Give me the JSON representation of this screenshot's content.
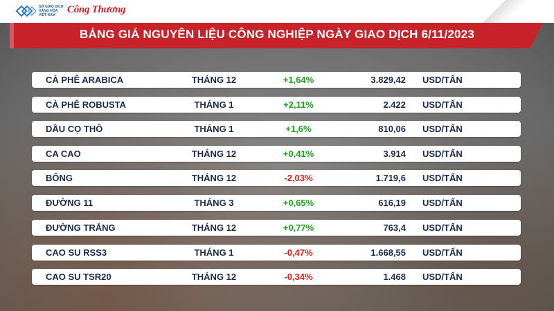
{
  "header": {
    "logo_text": "SỞ GIAO DỊCH HÀNG HÓA VIỆT NAM",
    "brand": "Công Thương",
    "title": "BẢNG GIÁ NGUYÊN LIỆU CÔNG NGHIỆP NGÀY GIAO DỊCH 6/11/2023"
  },
  "rows": [
    {
      "name": "CÀ PHÊ ARABICA",
      "month": "THÁNG 12",
      "change": "+1,64%",
      "direction": "up",
      "price": "3.829,42",
      "unit": "USD/TẤN"
    },
    {
      "name": "CÀ PHÊ ROBUSTA",
      "month": "THÁNG 1",
      "change": "+2,11%",
      "direction": "up",
      "price": "2.422",
      "unit": "USD/TẤN"
    },
    {
      "name": "DẦU CỌ THÔ",
      "month": "THÁNG 1",
      "change": "+1,6%",
      "direction": "up",
      "price": "810,06",
      "unit": "USD/TẤN"
    },
    {
      "name": "CA CAO",
      "month": "THÁNG 12",
      "change": "+0,41%",
      "direction": "up",
      "price": "3.914",
      "unit": "USD/TẤN"
    },
    {
      "name": "BÔNG",
      "month": "THÁNG 12",
      "change": "-2,03%",
      "direction": "down",
      "price": "1.719,6",
      "unit": "USD/TẤN"
    },
    {
      "name": "ĐƯỜNG 11",
      "month": "THÁNG 3",
      "change": "+0,65%",
      "direction": "up",
      "price": "616,19",
      "unit": "USD/TẤN"
    },
    {
      "name": "ĐƯỜNG TRẮNG",
      "month": "THÁNG 12",
      "change": "+0,77%",
      "direction": "up",
      "price": "763,4",
      "unit": "USD/TẤN"
    },
    {
      "name": "CAO SU RSS3",
      "month": "THÁNG 1",
      "change": "-0,47%",
      "direction": "down",
      "price": "1.668,55",
      "unit": "USD/TẤN"
    },
    {
      "name": "CAO SU TSR20",
      "month": "THÁNG 12",
      "change": "-0,34%",
      "direction": "down",
      "price": "1.468",
      "unit": "USD/TẤN"
    }
  ],
  "colors": {
    "banner": "#c8232b",
    "up": "#1aa31a",
    "down": "#e01b1b",
    "text": "#1a2a4a"
  }
}
